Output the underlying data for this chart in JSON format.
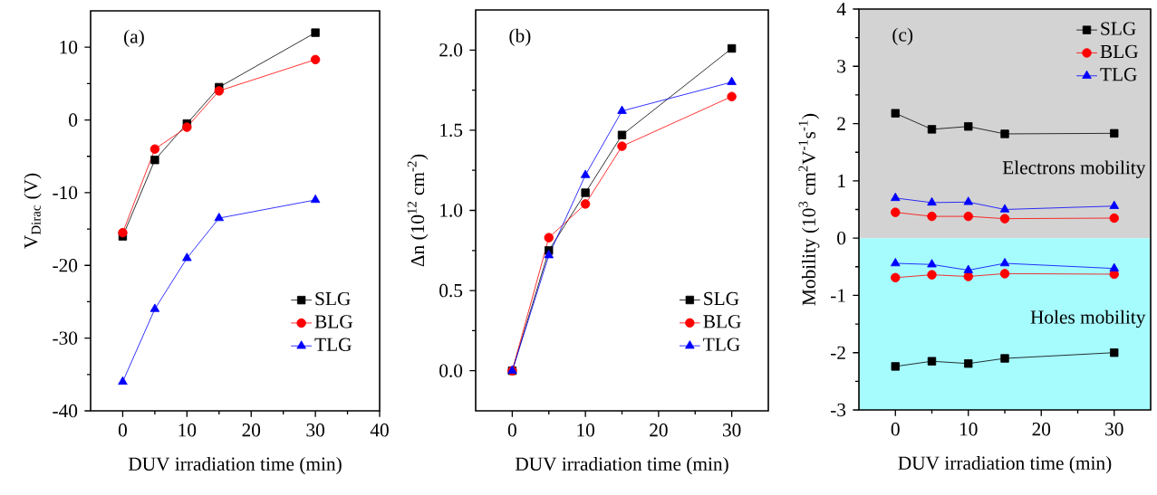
{
  "chart_data": [
    {
      "type": "line",
      "xlabel": "DUV irradiation time (min)",
      "ylabel": "V$_{Dirac}$ (V)",
      "annotations": [
        "(a)"
      ],
      "x": [
        0,
        5,
        10,
        15,
        30
      ],
      "xlim": [
        -5,
        40
      ],
      "xticks": [
        0,
        10,
        20,
        30,
        40
      ],
      "ylim": [
        -40,
        15
      ],
      "yticks": [
        -40,
        -30,
        -20,
        -10,
        0,
        10
      ],
      "legend": "bottom right",
      "line_style": "solid",
      "series": [
        {
          "name": "SLG",
          "color": "#000000",
          "marker": "square",
          "values": [
            -16,
            -5.5,
            -0.5,
            4.5,
            12
          ]
        },
        {
          "name": "BLG",
          "color": "#ff0000",
          "marker": "circle",
          "values": [
            -15.5,
            -4,
            -1,
            4,
            8.3
          ]
        },
        {
          "name": "TLG",
          "color": "#0000ff",
          "marker": "triangle",
          "values": [
            -36,
            -26,
            -19,
            -13.5,
            -11
          ]
        }
      ]
    },
    {
      "type": "line",
      "xlabel": "DUV irradiation time (min)",
      "ylabel": "Δn (10$^{12}$ cm$^{-2}$)",
      "annotations": [
        "(b)"
      ],
      "x": [
        0,
        5,
        10,
        15,
        30
      ],
      "xlim": [
        -5,
        35
      ],
      "xticks": [
        0,
        10,
        20,
        30
      ],
      "ylim": [
        -0.25,
        2.25
      ],
      "yticks": [
        {
          "value": 0,
          "label": "0.0"
        },
        {
          "value": 0.5,
          "label": "0.5"
        },
        {
          "value": 1,
          "label": "1.0"
        },
        {
          "value": 1.5,
          "label": "1.5"
        },
        {
          "value": 2,
          "label": "2.0"
        }
      ],
      "legend": "bottom right",
      "line_style": "solid",
      "series": [
        {
          "name": "SLG",
          "color": "#000000",
          "marker": "square",
          "values": [
            0,
            0.75,
            1.11,
            1.47,
            2.01
          ]
        },
        {
          "name": "BLG",
          "color": "#ff0000",
          "marker": "circle",
          "values": [
            0,
            0.83,
            1.04,
            1.4,
            1.71
          ]
        },
        {
          "name": "TLG",
          "color": "#0000ff",
          "marker": "triangle",
          "values": [
            0,
            0.72,
            1.22,
            1.62,
            1.8
          ]
        }
      ]
    },
    {
      "type": "line",
      "xlabel": "DUV irradiation time (min)",
      "ylabel": "Mobility (10$^{3}$ cm$^{2}$V$^{-1}$s$^{-1}$)",
      "annotations": [
        "(c)"
      ],
      "x": [
        0,
        5,
        10,
        15,
        30
      ],
      "xlim": [
        -5,
        35
      ],
      "xticks": [
        0,
        10,
        20,
        30
      ],
      "ylim": [
        -3,
        4
      ],
      "yticks": [
        -3,
        -2,
        -1,
        0,
        1,
        2,
        3,
        4
      ],
      "legend": "top right",
      "line_style": "solid",
      "bands": [
        {
          "axis": "y",
          "from": 0,
          "to": 4,
          "label": "Electrons mobility",
          "color": "#d3d3d3"
        },
        {
          "axis": "y",
          "from": -3,
          "to": 0,
          "label": "Holes mobility",
          "color": "#a6fbfd"
        }
      ],
      "series": [
        {
          "name": "SLG",
          "color": "#000000",
          "marker": "square",
          "values": [
            2.18,
            1.9,
            1.95,
            1.82,
            1.83
          ]
        },
        {
          "name": "BLG",
          "color": "#ff0000",
          "marker": "circle",
          "values": [
            0.45,
            0.38,
            0.38,
            0.34,
            0.35
          ]
        },
        {
          "name": "TLG",
          "color": "#0000ff",
          "marker": "triangle",
          "values": [
            0.7,
            0.62,
            0.63,
            0.5,
            0.56
          ]
        },
        {
          "color": "#000000",
          "marker": "square",
          "values": [
            -2.24,
            -2.15,
            -2.19,
            -2.1,
            -2.0
          ]
        },
        {
          "color": "#ff0000",
          "marker": "circle",
          "values": [
            -0.69,
            -0.64,
            -0.67,
            -0.62,
            -0.63
          ]
        },
        {
          "color": "#0000ff",
          "marker": "triangle",
          "values": [
            -0.44,
            -0.46,
            -0.56,
            -0.44,
            -0.53
          ]
        }
      ]
    }
  ]
}
